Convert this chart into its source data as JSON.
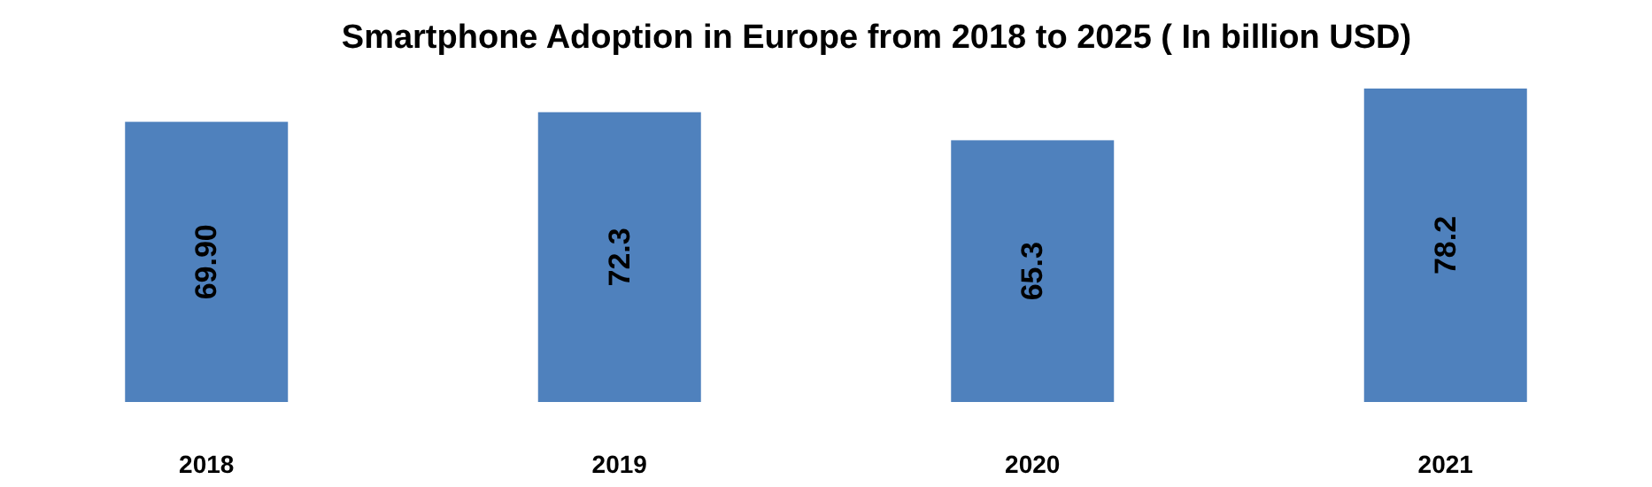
{
  "chart_data": {
    "type": "bar",
    "title": "Smartphone Adoption in Europe from 2018 to 2025 ( In billion USD)",
    "categories": [
      "2018",
      "2019",
      "2020",
      "2021"
    ],
    "values": [
      69.9,
      72.3,
      65.3,
      78.2
    ],
    "value_labels": [
      "69.90",
      "72.3",
      "65.3",
      "78.2"
    ],
    "color": "#4f81bd"
  }
}
